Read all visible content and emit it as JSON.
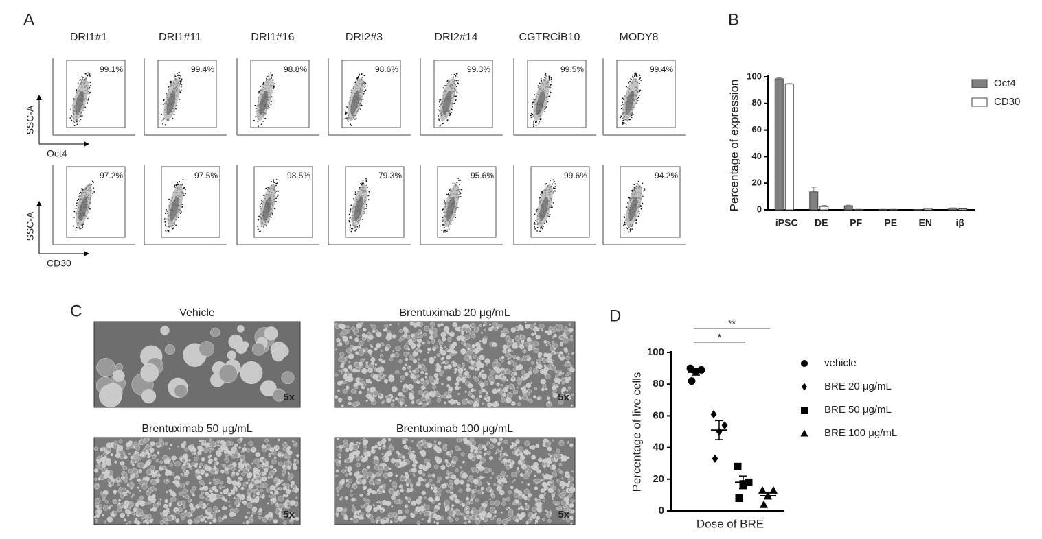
{
  "panel_labels": [
    "A",
    "B",
    "C",
    "D"
  ],
  "flow": {
    "samples": [
      "DRI1#1",
      "DRI1#11",
      "DRI1#16",
      "DRI2#3",
      "DRI2#14",
      "CGTRCiB10",
      "MODY8"
    ],
    "rows": [
      {
        "y_label": "SSC-A",
        "x_label": "Oct4",
        "gates": [
          "99.1%",
          "99.4%",
          "98.8%",
          "98.6%",
          "99.3%",
          "99.5%",
          "99.4%"
        ]
      },
      {
        "y_label": "SSC-A",
        "x_label": "CD30",
        "gates": [
          "97.2%",
          "97.5%",
          "98.5%",
          "79.3%",
          "95.6%",
          "99.6%",
          "94.2%"
        ]
      }
    ]
  },
  "micrographs": [
    {
      "title": "Vehicle",
      "magnification": "5x"
    },
    {
      "title": "Brentuximab 20 μg/mL",
      "magnification": "5x"
    },
    {
      "title": "Brentuximab 50 μg/mL",
      "magnification": "5x"
    },
    {
      "title": "Brentuximab 100 μg/mL",
      "magnification": "5x"
    }
  ],
  "chart_data": [
    {
      "type": "bar",
      "y_label": "Percentage of expression",
      "categories": [
        "iPSC",
        "DE",
        "PF",
        "PE",
        "EN",
        "iβ"
      ],
      "series": [
        {
          "name": "Oct4",
          "color": "#808080",
          "values": [
            98.5,
            13.5,
            3,
            0.3,
            0.2,
            1.2
          ],
          "errors": [
            0.8,
            3.5,
            0.5,
            0.1,
            0.1,
            0.3
          ]
        },
        {
          "name": "CD30",
          "color": "#ffffff",
          "values": [
            94.5,
            2.5,
            0.3,
            0.3,
            1,
            0.8
          ],
          "errors": [
            0.5,
            0.8,
            0.1,
            0.1,
            0.3,
            0.2
          ]
        }
      ],
      "ylim": [
        0,
        100
      ],
      "yticks": [
        0,
        20,
        40,
        60,
        80,
        100
      ],
      "legend": "right"
    },
    {
      "type": "scatter",
      "x_label": "Dose of BRE",
      "y_label": "Percentage of live cells",
      "series": [
        {
          "name": "vehicle",
          "marker": "circle",
          "color": "#000000",
          "values": [
            90,
            89,
            88,
            82
          ],
          "mean": 87.5,
          "sem": 1.8
        },
        {
          "name": "BRE 20 μg/mL",
          "marker": "diamond",
          "color": "#000000",
          "values": [
            61,
            54,
            50,
            33
          ],
          "mean": 51,
          "sem": 6
        },
        {
          "name": "BRE 50 μg/mL",
          "marker": "square",
          "color": "#000000",
          "values": [
            28,
            18,
            17,
            8
          ],
          "mean": 18,
          "sem": 4
        },
        {
          "name": "BRE 100 μg/mL",
          "marker": "triangle",
          "color": "#000000",
          "values": [
            13,
            13,
            9.5,
            4
          ],
          "mean": 9.5,
          "sem": 2
        }
      ],
      "ylim": [
        0,
        100
      ],
      "yticks": [
        0,
        20,
        40,
        60,
        80,
        100
      ],
      "annotations": [
        {
          "text": "*",
          "groups": [
            0,
            2
          ]
        },
        {
          "text": "**",
          "groups": [
            0,
            3
          ]
        }
      ],
      "legend": "right"
    }
  ]
}
